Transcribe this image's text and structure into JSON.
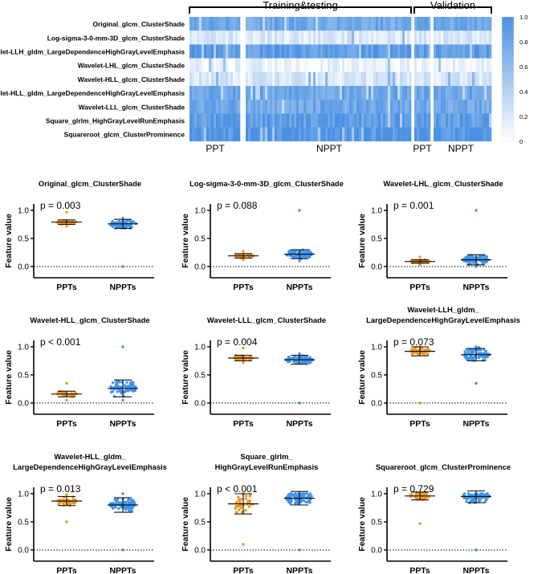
{
  "colors": {
    "ppt": "#f5931e",
    "nppt": "#3f94ee",
    "heat_high": "#4a90e2",
    "heat_low": "#ffffff"
  },
  "heatmap": {
    "group_labels": [
      "Training&testing",
      "Validation"
    ],
    "column_labels": [
      "PPT",
      "NPPT",
      "PPT",
      "NPPT"
    ],
    "colorbar_ticks": [
      "1.0",
      "0.8",
      "0.6",
      "0.4",
      "0.2",
      "0"
    ],
    "rows": [
      {
        "label": "Original_glcm_ClusterShade",
        "level": 0.78
      },
      {
        "label": "Log-sigma-3-0-mm-3D_glcm_ClusterShade",
        "level": 0.2
      },
      {
        "label": "Wavelet-LLH_gldm_LargeDependenceHighGrayLevelEmphasis",
        "level": 0.88
      },
      {
        "label": "Wavelet-LHL_glcm_ClusterShade",
        "level": 0.1
      },
      {
        "label": "Wavelet-HLL_glcm_ClusterShade",
        "level": 0.22
      },
      {
        "label": "Wavelet-HLL_gldm_LargeDependenceHighGrayLevelEmphasis",
        "level": 0.8
      },
      {
        "label": "Wavelet-LLL_glcm_ClusterShade",
        "level": 0.78
      },
      {
        "label": "Square_glrlm_HighGrayLevelRunEmphasis",
        "level": 0.88
      },
      {
        "label": "Squareroot_glcm_ClusterProminence",
        "level": 0.95
      }
    ]
  },
  "y_axis_label": "Feature value",
  "chart_data": [
    {
      "type": "scatter",
      "title": [
        "Original_glcm_ClusterShade"
      ],
      "pvalue": "p = 0.003",
      "categories": [
        "PPTs",
        "NPPTs"
      ],
      "yticks": [
        "0.0",
        "0.5",
        "1.0"
      ],
      "ylim": [
        0,
        1.0
      ],
      "series": [
        {
          "name": "PPTs",
          "mean": 0.79,
          "sd": 0.04,
          "min": 0.72,
          "max": 0.97
        },
        {
          "name": "NPPTs",
          "mean": 0.76,
          "sd": 0.08,
          "min": 0.0,
          "max": 0.86
        }
      ]
    },
    {
      "type": "scatter",
      "title": [
        "Log-sigma-3-0-mm-3D_glcm_ClusterShade"
      ],
      "pvalue": "p = 0.088",
      "categories": [
        "PPTs",
        "NPPTs"
      ],
      "yticks": [
        "0.0",
        "0.5",
        "1.0"
      ],
      "ylim": [
        0,
        1.0
      ],
      "series": [
        {
          "name": "PPTs",
          "mean": 0.19,
          "sd": 0.04,
          "min": 0.12,
          "max": 0.27
        },
        {
          "name": "NPPTs",
          "mean": 0.22,
          "sd": 0.08,
          "min": 0.1,
          "max": 1.0
        }
      ]
    },
    {
      "type": "scatter",
      "title": [
        "Wavelet-LHL_glcm_ClusterShade"
      ],
      "pvalue": "p = 0.001",
      "categories": [
        "PPTs",
        "NPPTs"
      ],
      "yticks": [
        "0.0",
        "0.5",
        "1.0"
      ],
      "ylim": [
        0,
        1.0
      ],
      "series": [
        {
          "name": "PPTs",
          "mean": 0.09,
          "sd": 0.03,
          "min": 0.03,
          "max": 0.17
        },
        {
          "name": "NPPTs",
          "mean": 0.12,
          "sd": 0.09,
          "min": 0.0,
          "max": 1.0
        }
      ]
    },
    {
      "type": "scatter",
      "title": [
        "Wavelet-HLL_glcm_ClusterShade"
      ],
      "pvalue": "p < 0.001",
      "categories": [
        "PPTs",
        "NPPTs"
      ],
      "yticks": [
        "0.0",
        "0.5",
        "1.0"
      ],
      "ylim": [
        0,
        1.0
      ],
      "series": [
        {
          "name": "PPTs",
          "mean": 0.16,
          "sd": 0.05,
          "min": 0.05,
          "max": 0.35
        },
        {
          "name": "NPPTs",
          "mean": 0.26,
          "sd": 0.15,
          "min": 0.05,
          "max": 1.0
        }
      ]
    },
    {
      "type": "scatter",
      "title": [
        "Wavelet-LLL_glcm_ClusterShade"
      ],
      "pvalue": "p = 0.004",
      "categories": [
        "PPTs",
        "NPPTs"
      ],
      "yticks": [
        "0.0",
        "0.5",
        "1.0"
      ],
      "ylim": [
        0,
        1.0
      ],
      "series": [
        {
          "name": "PPTs",
          "mean": 0.8,
          "sd": 0.05,
          "min": 0.72,
          "max": 0.98
        },
        {
          "name": "NPPTs",
          "mean": 0.77,
          "sd": 0.08,
          "min": 0.0,
          "max": 0.88
        }
      ]
    },
    {
      "type": "scatter",
      "title": [
        "Wavelet-LLH_gldm_",
        "LargeDependenceHighGrayLevelEmphasis"
      ],
      "pvalue": "p = 0.073",
      "categories": [
        "PPTs",
        "NPPTs"
      ],
      "yticks": [
        "0.0",
        "0.5",
        "1.0"
      ],
      "ylim": [
        0,
        1.0
      ],
      "series": [
        {
          "name": "PPTs",
          "mean": 0.92,
          "sd": 0.08,
          "min": 0.0,
          "max": 1.0
        },
        {
          "name": "NPPTs",
          "mean": 0.86,
          "sd": 0.11,
          "min": 0.35,
          "max": 1.0
        }
      ]
    },
    {
      "type": "scatter",
      "title": [
        "Wavelet-HLL_gldm_",
        "LargeDependenceHighGrayLevelEmphasis"
      ],
      "pvalue": "p = 0.013",
      "categories": [
        "PPTs",
        "NPPTs"
      ],
      "yticks": [
        "0.0",
        "0.5",
        "1.0"
      ],
      "ylim": [
        0,
        1.0
      ],
      "series": [
        {
          "name": "PPTs",
          "mean": 0.87,
          "sd": 0.08,
          "min": 0.5,
          "max": 0.98
        },
        {
          "name": "NPPTs",
          "mean": 0.8,
          "sd": 0.13,
          "min": 0.0,
          "max": 1.0
        }
      ]
    },
    {
      "type": "scatter",
      "title": [
        "Square_glrlm_",
        "HighGrayLevelRunEmphasis"
      ],
      "pvalue": "p < 0.001",
      "categories": [
        "PPTs",
        "NPPTs"
      ],
      "yticks": [
        "0.0",
        "0.5",
        "1.0"
      ],
      "ylim": [
        0,
        1.0
      ],
      "series": [
        {
          "name": "PPTs",
          "mean": 0.82,
          "sd": 0.18,
          "min": 0.1,
          "max": 1.0
        },
        {
          "name": "NPPTs",
          "mean": 0.92,
          "sd": 0.12,
          "min": 0.0,
          "max": 1.0
        }
      ]
    },
    {
      "type": "scatter",
      "title": [
        "Squareroot_glcm_ClusterProminence"
      ],
      "pvalue": "p = 0.729",
      "categories": [
        "PPTs",
        "NPPTs"
      ],
      "yticks": [
        "0.0",
        "0.5",
        "1.0"
      ],
      "ylim": [
        0,
        1.0
      ],
      "series": [
        {
          "name": "PPTs",
          "mean": 0.96,
          "sd": 0.07,
          "min": 0.47,
          "max": 1.0
        },
        {
          "name": "NPPTs",
          "mean": 0.95,
          "sd": 0.11,
          "min": 0.0,
          "max": 1.0
        }
      ]
    }
  ]
}
